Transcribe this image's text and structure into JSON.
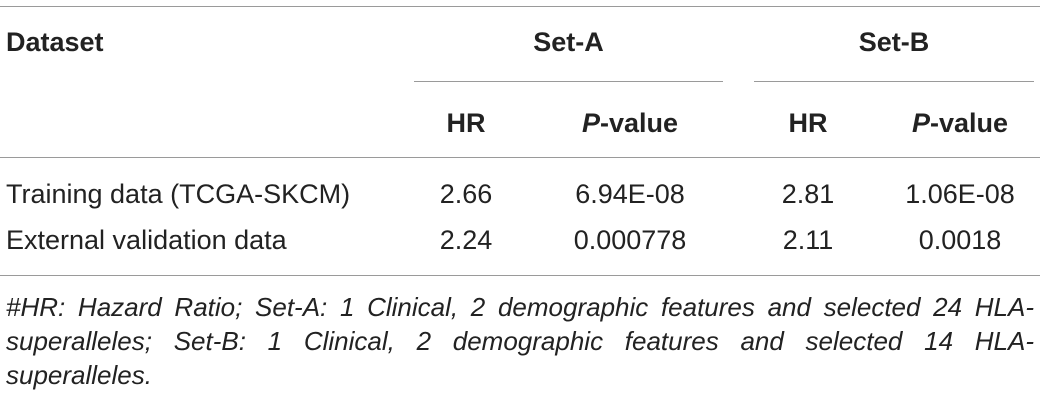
{
  "table": {
    "header_row1": {
      "dataset": "Dataset",
      "set_a": "Set-A",
      "set_b": "Set-B"
    },
    "header_row2": {
      "a_hr": "HR",
      "a_p_italic": "P",
      "a_p_rest": "-value",
      "b_hr": "HR",
      "b_p_italic": "P",
      "b_p_rest": "-value"
    },
    "rows": [
      {
        "dataset": "Training data (TCGA-SKCM)",
        "a_hr": "2.66",
        "a_p": "6.94E-08",
        "b_hr": "2.81",
        "b_p": "1.06E-08"
      },
      {
        "dataset": "External validation data",
        "a_hr": "2.24",
        "a_p": "0.000778",
        "b_hr": "2.11",
        "b_p": "0.0018"
      }
    ]
  },
  "footnote": "#HR: Hazard Ratio; Set-A: 1 Clinical, 2 demographic features and selected 24 HLA-superalleles; Set-B: 1 Clinical, 2 demographic features and selected 14 HLA-superalleles."
}
